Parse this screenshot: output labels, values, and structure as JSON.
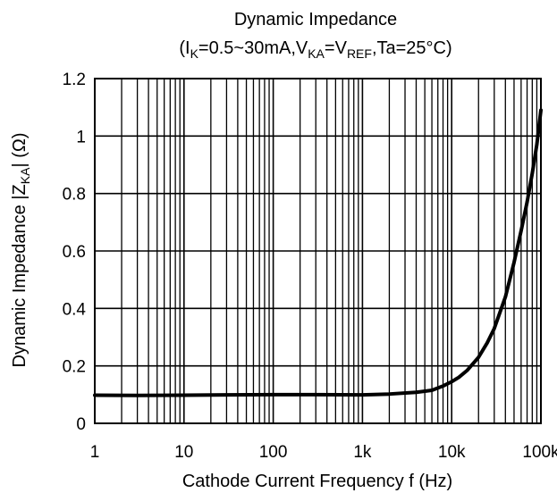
{
  "chart_data": {
    "type": "line",
    "title": "Dynamic Impedance",
    "subtitle": {
      "open": "(I",
      "ik_sub": "K",
      "mid1": "=0.5~30mA,V",
      "vka_sub": "KA",
      "mid2": "=V",
      "vref_sub": "REF",
      "tail": ",Ta=25°C)"
    },
    "xlabel": "Cathode Current Frequency  f  (Hz)",
    "ylabel": {
      "main": "Dynamic Impedance  |Z",
      "sub": "KA",
      "tail": "|  (Ω)"
    },
    "x_scale": "log",
    "xlim": [
      1,
      100000
    ],
    "ylim": [
      0,
      1.2
    ],
    "grid": true,
    "x_ticks": [
      {
        "value": 1,
        "label": "1"
      },
      {
        "value": 10,
        "label": "10"
      },
      {
        "value": 100,
        "label": "100"
      },
      {
        "value": 1000,
        "label": "1k"
      },
      {
        "value": 10000,
        "label": "10k"
      },
      {
        "value": 100000,
        "label": "100k"
      }
    ],
    "y_ticks": [
      {
        "value": 0,
        "label": "0"
      },
      {
        "value": 0.2,
        "label": "0.2"
      },
      {
        "value": 0.4,
        "label": "0.4"
      },
      {
        "value": 0.6,
        "label": "0.6"
      },
      {
        "value": 0.8,
        "label": "0.8"
      },
      {
        "value": 1.0,
        "label": "1"
      },
      {
        "value": 1.2,
        "label": "1.2"
      }
    ],
    "series": [
      {
        "color": "#000000",
        "x": [
          1,
          3,
          10,
          30,
          100,
          300,
          1000,
          2000,
          4000,
          6000,
          8000,
          10000,
          12000,
          15000,
          20000,
          25000,
          30000,
          40000,
          50000,
          60000,
          70000,
          80000,
          90000,
          100000
        ],
        "y": [
          0.098,
          0.097,
          0.098,
          0.099,
          0.1,
          0.1,
          0.099,
          0.102,
          0.108,
          0.115,
          0.13,
          0.145,
          0.16,
          0.185,
          0.23,
          0.28,
          0.33,
          0.44,
          0.56,
          0.67,
          0.77,
          0.87,
          0.97,
          1.09
        ]
      }
    ]
  }
}
